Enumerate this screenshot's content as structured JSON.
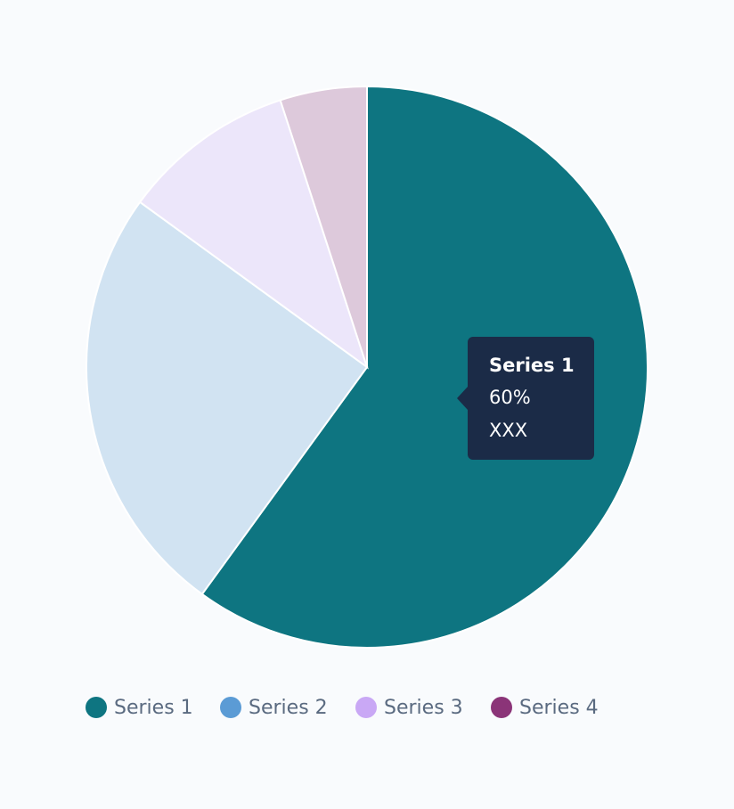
{
  "chart_data": {
    "type": "pie",
    "categories": [
      "Series 1",
      "Series 2",
      "Series 3",
      "Series 4"
    ],
    "values": [
      60,
      25,
      10,
      5
    ],
    "colors": [
      "#0e7581",
      "#5b9bd5",
      "#c9a8f5",
      "#8b3478"
    ],
    "tooltip": {
      "value_label": "60%",
      "text": "XXX"
    }
  }
}
